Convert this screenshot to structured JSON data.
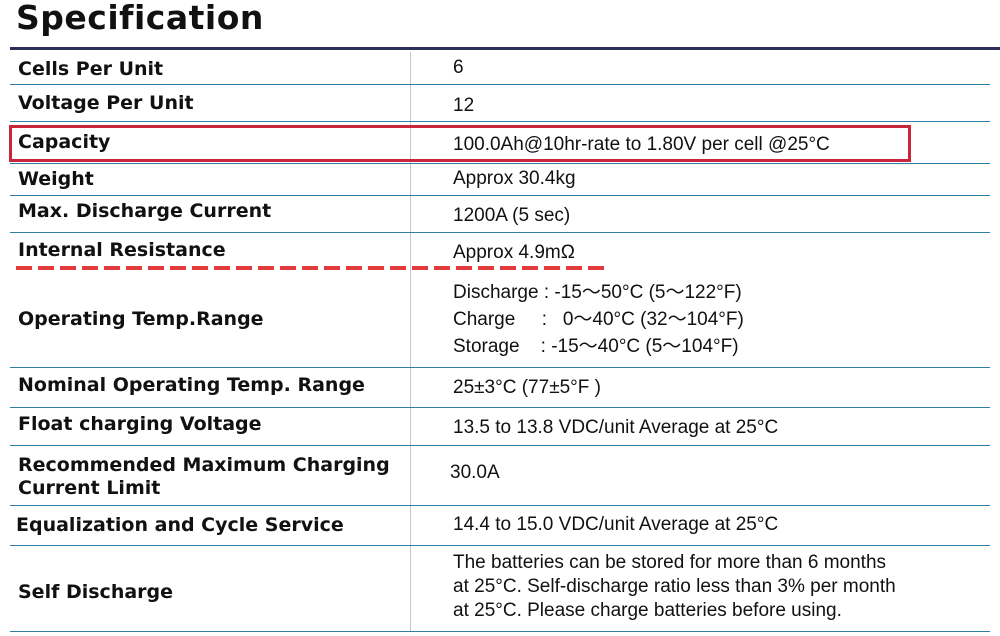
{
  "title": "Specification",
  "rows": [
    {
      "label": "Cells Per Unit",
      "value": "6"
    },
    {
      "label": "Voltage Per Unit",
      "value": "12"
    },
    {
      "label": "Capacity",
      "value": "100.0Ah@10hr-rate to 1.80V per cell @25°C"
    },
    {
      "label": "Weight",
      "value": "Approx 30.4kg"
    },
    {
      "label": "Max. Discharge Current",
      "value": "1200A (5 sec)"
    },
    {
      "label": "Internal Resistance",
      "value": "Approx 4.9mΩ"
    },
    {
      "label": "Operating Temp.Range",
      "lines": [
        "Discharge : -15～50°C (5～122°F)",
        "Charge     :   0～40°C (32～104°F)",
        "Storage    : -15～40°C (5～104°F)"
      ]
    },
    {
      "label": "Nominal Operating Temp. Range",
      "value": "25±3°C (77±5°F )"
    },
    {
      "label": "Float charging Voltage",
      "value": "13.5 to 13.8 VDC/unit Average at 25°C"
    },
    {
      "label_lines": [
        "Recommended Maximum Charging",
        "Current Limit"
      ],
      "value": "30.0A"
    },
    {
      "label": "Equalization and Cycle Service",
      "value": "14.4 to 15.0 VDC/unit Average at 25°C"
    },
    {
      "label": "Self Discharge",
      "lines": [
        "The batteries can be stored for more than 6 months",
        "at 25°C. Self-discharge ratio less than 3% per month",
        "at 25°C. Please charge batteries before using."
      ]
    }
  ],
  "colors": {
    "highlight_box": "#c8263a",
    "dash_underline": "#e23b3b",
    "row_rule": "#2f7fa6",
    "title_rule": "#2b2f59"
  }
}
